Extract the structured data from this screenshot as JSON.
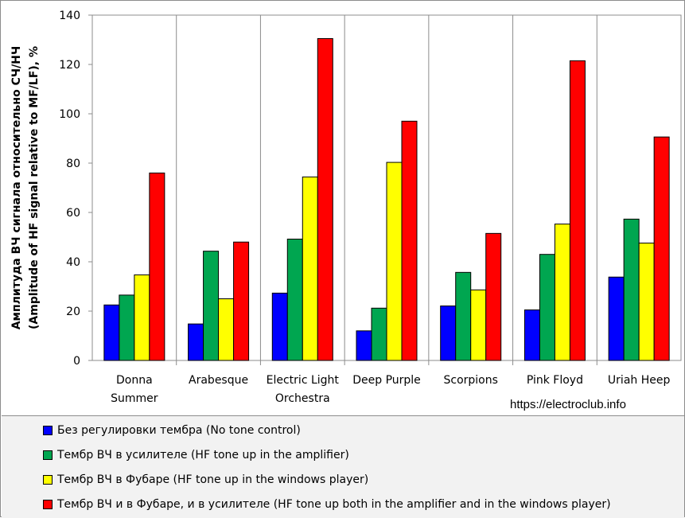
{
  "chart_data": {
    "type": "bar",
    "categories": [
      [
        "Donna",
        "Summer"
      ],
      [
        "Arabesque"
      ],
      [
        "Electric Light",
        "Orchestra"
      ],
      [
        "Deep Purple"
      ],
      [
        "Scorpions"
      ],
      [
        "Pink Floyd"
      ],
      [
        "Uriah Heep"
      ]
    ],
    "series": [
      {
        "name": "Без регулировки тембра (No tone control)",
        "color": "#0000ff",
        "values": [
          22.5,
          14.8,
          27.3,
          12,
          22.1,
          20.5,
          33.8
        ]
      },
      {
        "name": "Тембр ВЧ в усилителе (HF tone up in the amplifier)",
        "color": "#00a650",
        "values": [
          26.5,
          44.3,
          49.2,
          21.2,
          35.7,
          43,
          57.3
        ]
      },
      {
        "name": "Тембр ВЧ в Фубаре (HF tone up in the windows player)",
        "color": "#ffff00",
        "values": [
          34.7,
          25,
          74.4,
          80.3,
          28.6,
          55.3,
          47.6
        ]
      },
      {
        "name": "Тембр ВЧ и в Фубаре, и в усилителе (HF tone up both in the amplifier and in the windows player)",
        "color": "#ff0000",
        "values": [
          76,
          48,
          130.5,
          97,
          51.5,
          121.5,
          90.6
        ]
      }
    ],
    "ylabel_lines": [
      "Амплитуда ВЧ сигнала относительно СЧ/НЧ",
      "(Amplitude of HF signal relative to MF/LF), %"
    ],
    "ylim": [
      0,
      140
    ],
    "yticks": [
      0,
      20,
      40,
      60,
      80,
      100,
      120,
      140
    ],
    "grid": "vertical category separators",
    "legend_position": "bottom"
  },
  "watermark": "https://electroclub.info"
}
